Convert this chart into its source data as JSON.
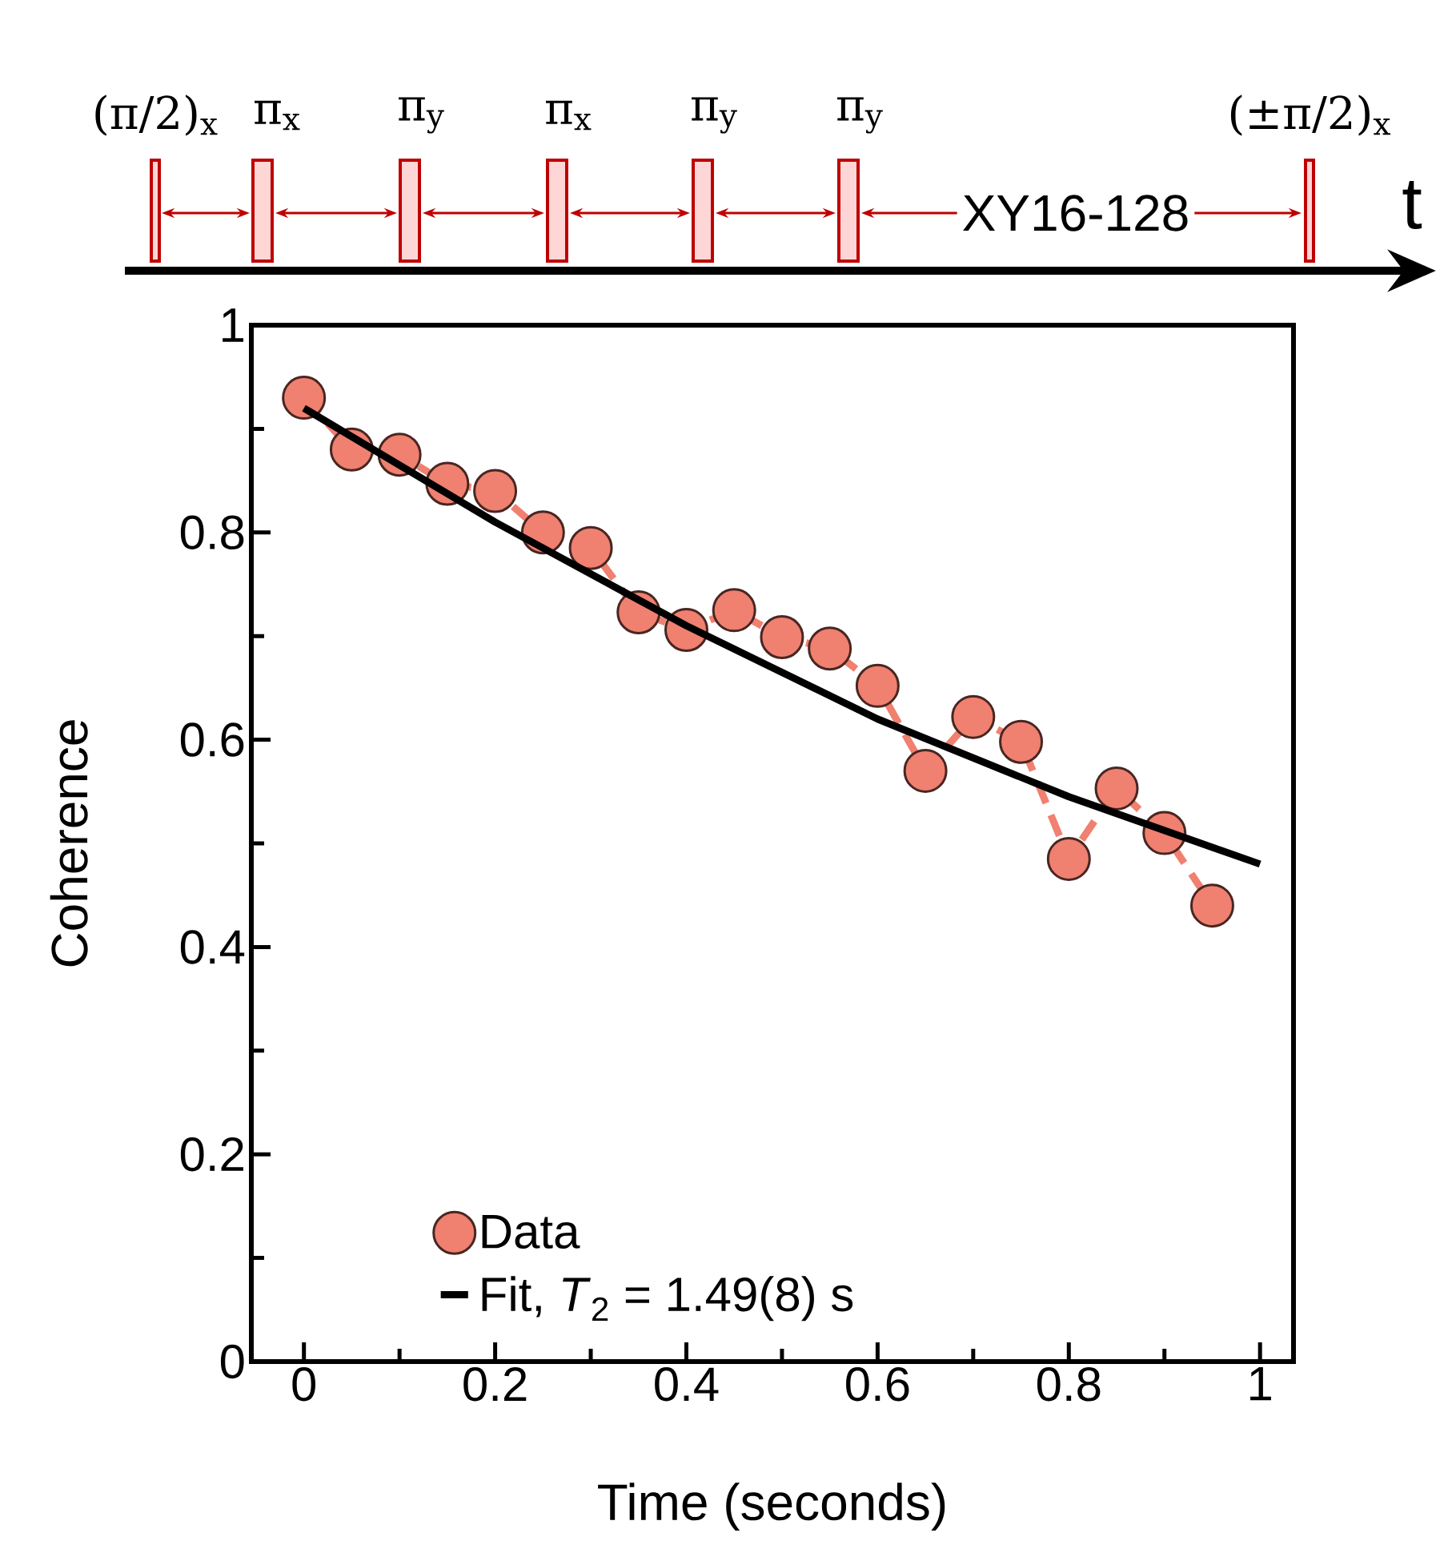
{
  "chart_data": {
    "type": "line",
    "xlabel": "Time (seconds)",
    "ylabel": "Coherence",
    "xlim": [
      -0.055,
      1.035
    ],
    "ylim": [
      0,
      1
    ],
    "xticks": [
      0,
      {
        "value": 0.2,
        "label": "0.2"
      },
      {
        "value": 0.4,
        "label": "0.4"
      },
      {
        "value": 0.6,
        "label": "0.6"
      },
      {
        "value": 0.8,
        "label": "0.8"
      },
      1
    ],
    "yticks": [
      0,
      {
        "value": 0.2,
        "label": "0.2"
      },
      {
        "value": 0.4,
        "label": "0.4"
      },
      {
        "value": 0.6,
        "label": "0.6"
      },
      {
        "value": 0.8,
        "label": "0.8"
      },
      1
    ],
    "legend": "bottom left",
    "series": [
      {
        "name": "Data",
        "color": "#f08070",
        "marker": "circle",
        "line_style": "dashed",
        "x": [
          0,
          0.05,
          0.1,
          0.15,
          0.2,
          0.25,
          0.3,
          0.35,
          0.4,
          0.45,
          0.5,
          0.55,
          0.6,
          0.65,
          0.7,
          0.75,
          0.8,
          0.85,
          0.9,
          0.95
        ],
        "values": [
          0.93,
          0.88,
          0.875,
          0.847,
          0.84,
          0.8,
          0.785,
          0.723,
          0.706,
          0.725,
          0.699,
          0.688,
          0.652,
          0.57,
          0.622,
          0.598,
          0.485,
          0.553,
          0.51,
          0.44
        ]
      },
      {
        "name": "Fit, *T*$_{2}$ = 1.49(8) s",
        "color": "#000000",
        "marker": "none",
        "line_style": "solid",
        "x": [
          0,
          0.2,
          0.4,
          0.6,
          0.8,
          1
        ],
        "values": [
          0.92,
          0.81,
          0.71,
          0.62,
          0.545,
          0.48
        ]
      }
    ],
    "annotations": [
      "(π/2)$_{x}$",
      "π$_{x}$",
      "π$_{y}$",
      "π$_{x}$",
      "π$_{y}$",
      "π$_{y}$",
      "XY16-128",
      "(±π/2)$_{x}$",
      "t"
    ]
  }
}
